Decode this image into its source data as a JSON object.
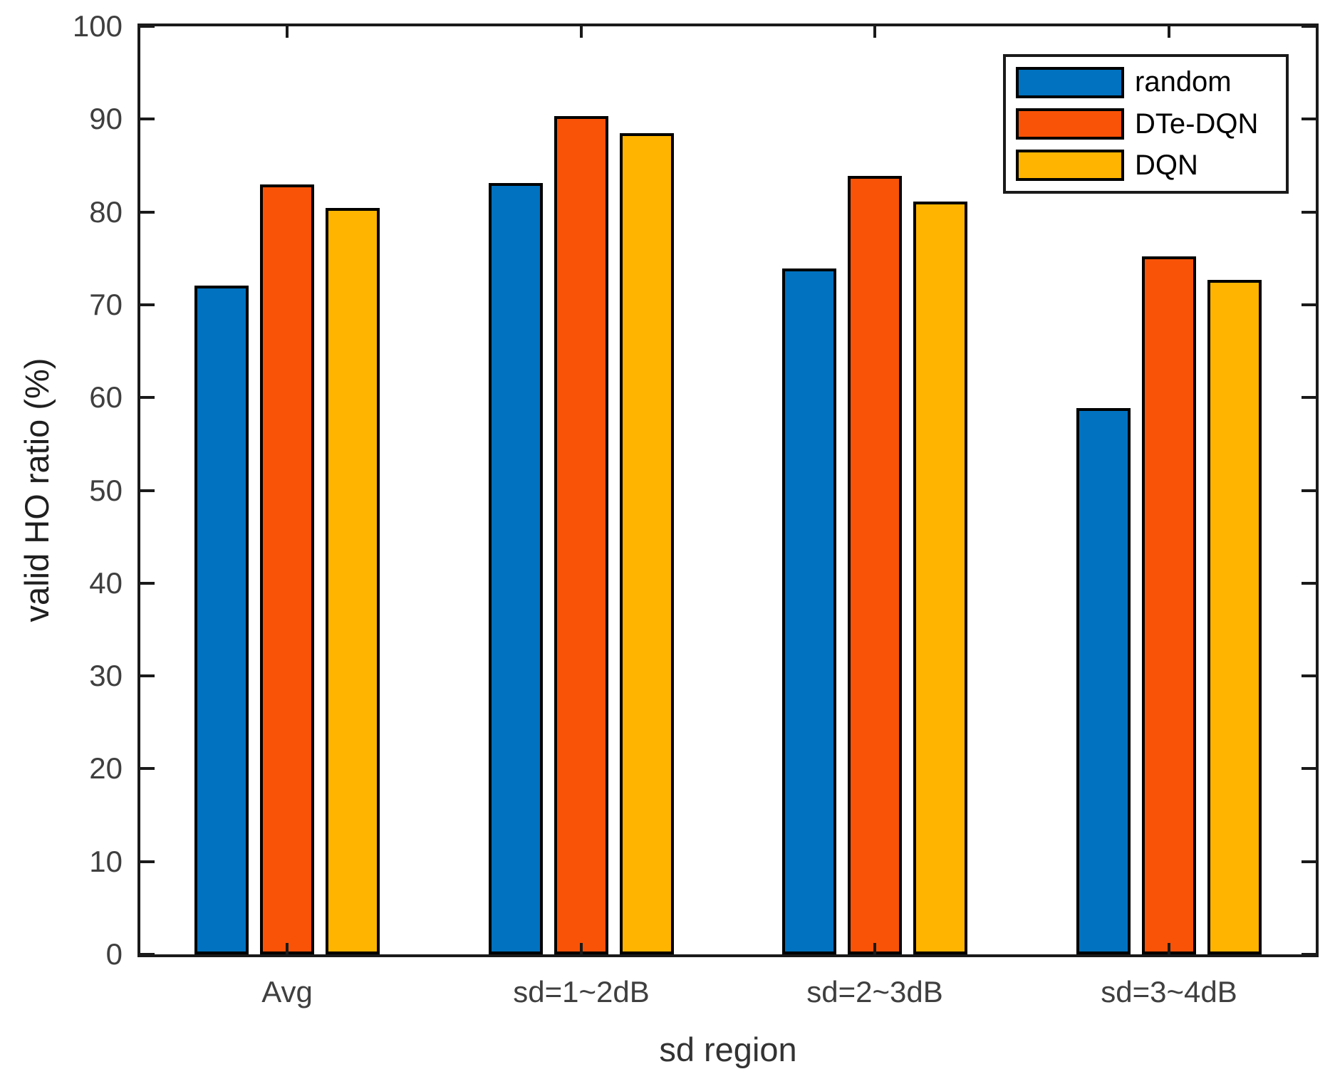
{
  "figure": {
    "background": "#ffffff",
    "frame_color": "#1a1a1a",
    "tick_label_color": "#3f3f3f",
    "bar_edge_color": "#000000"
  },
  "chart_data": {
    "type": "bar",
    "title": "",
    "xlabel": "sd region",
    "ylabel": "valid HO ratio (%)",
    "categories": [
      "Avg",
      "sd=1~2dB",
      "sd=2~3dB",
      "sd=3~4dB"
    ],
    "series": [
      {
        "name": "random",
        "color": "#0072C0",
        "values": [
          72.1,
          83.1,
          73.9,
          58.9
        ]
      },
      {
        "name": "DTe-DQN",
        "color": "#F95307",
        "values": [
          83.0,
          90.3,
          83.9,
          75.2
        ]
      },
      {
        "name": "DQN",
        "color": "#FFB400",
        "values": [
          80.4,
          88.5,
          81.1,
          72.7
        ]
      }
    ],
    "ylim": [
      0,
      100
    ],
    "yticks": [
      0,
      10,
      20,
      30,
      40,
      50,
      60,
      70,
      80,
      90,
      100
    ],
    "grid": false,
    "legend_position": "top-right"
  }
}
